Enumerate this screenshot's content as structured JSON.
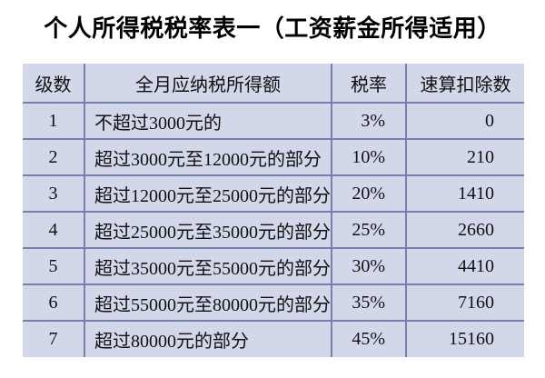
{
  "chart_data": {
    "type": "table",
    "title": "个人所得税税率表一（工资薪金所得适用）",
    "columns": [
      "级数",
      "全月应纳税所得额",
      "税率",
      "速算扣除数"
    ],
    "rows": [
      [
        "1",
        "不超过3000元的",
        "3%",
        "0"
      ],
      [
        "2",
        "超过3000元至12000元的部分",
        "10%",
        "210"
      ],
      [
        "3",
        "超过12000元至25000元的部分",
        "20%",
        "1410"
      ],
      [
        "4",
        "超过25000元至35000元的部分",
        "25%",
        "2660"
      ],
      [
        "5",
        "超过35000元至55000元的部分",
        "30%",
        "4410"
      ],
      [
        "6",
        "超过55000元至80000元的部分",
        "35%",
        "7160"
      ],
      [
        "7",
        "超过80000元的部分",
        "45%",
        "15160"
      ]
    ],
    "layout": {
      "legend": "none",
      "grid": "internal-lines-only"
    }
  },
  "colors": {
    "page_bg": "#ffffff",
    "table_bg": "#d2d7e9",
    "border": "#7680ac",
    "text": "#111111",
    "title_text": "#000000"
  }
}
